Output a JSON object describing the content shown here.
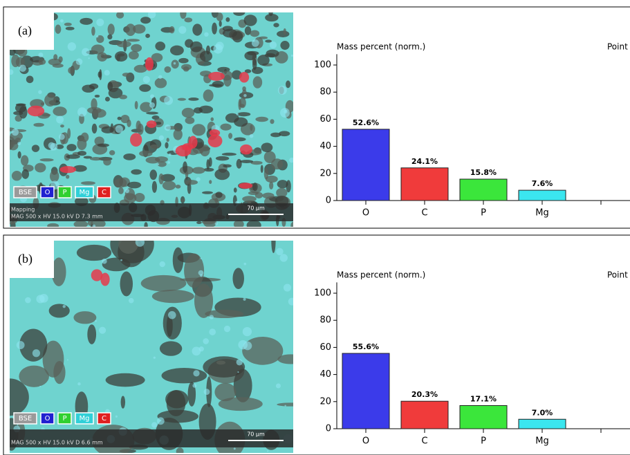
{
  "chart_data": [
    {
      "type": "bar",
      "panel_label": "(a)",
      "title": "Mass percent (norm.)",
      "corner_label": "Point",
      "categories": [
        "O",
        "C",
        "P",
        "Mg",
        null
      ],
      "values": [
        52.6,
        24.1,
        15.8,
        7.6,
        null
      ],
      "value_labels": [
        "52.6%",
        "24.1%",
        "15.8%",
        "7.6%",
        null
      ],
      "colors": [
        "#3b3bea",
        "#f03b3b",
        "#3be63b",
        "#3be6ef"
      ],
      "ylim": [
        0,
        108
      ],
      "yticks": [
        0,
        20,
        40,
        60,
        80,
        100
      ],
      "image_legend": [
        {
          "name": "BSE",
          "color": "#9a9a9a"
        },
        {
          "name": "O",
          "color": "#2020d0"
        },
        {
          "name": "P",
          "color": "#30d030"
        },
        {
          "name": "Mg",
          "color": "#30d0d8"
        },
        {
          "name": "C",
          "color": "#e02020"
        }
      ],
      "image_caption": [
        "Mapping",
        "MAG  500 x   HV  15.0 kV   D  7.3 mm"
      ],
      "scale_bar": "70 µm"
    },
    {
      "type": "bar",
      "panel_label": "(b)",
      "title": "Mass percent (norm.)",
      "corner_label": "Point",
      "categories": [
        "O",
        "C",
        "P",
        "Mg",
        null
      ],
      "values": [
        55.6,
        20.3,
        17.1,
        7.0,
        null
      ],
      "value_labels": [
        "55.6%",
        "20.3%",
        "17.1%",
        "7.0%",
        null
      ],
      "colors": [
        "#3b3bea",
        "#f03b3b",
        "#3be63b",
        "#3be6ef"
      ],
      "ylim": [
        0,
        108
      ],
      "yticks": [
        0,
        20,
        40,
        60,
        80,
        100
      ],
      "image_legend": [
        {
          "name": "BSE",
          "color": "#9a9a9a"
        },
        {
          "name": "O",
          "color": "#2020d0"
        },
        {
          "name": "P",
          "color": "#30d030"
        },
        {
          "name": "Mg",
          "color": "#30d0d8"
        },
        {
          "name": "C",
          "color": "#e02020"
        }
      ],
      "image_caption": [
        "MAG  500 x   HV  15.0 kV   D  6.6 mm"
      ],
      "scale_bar": "70 µm"
    }
  ]
}
